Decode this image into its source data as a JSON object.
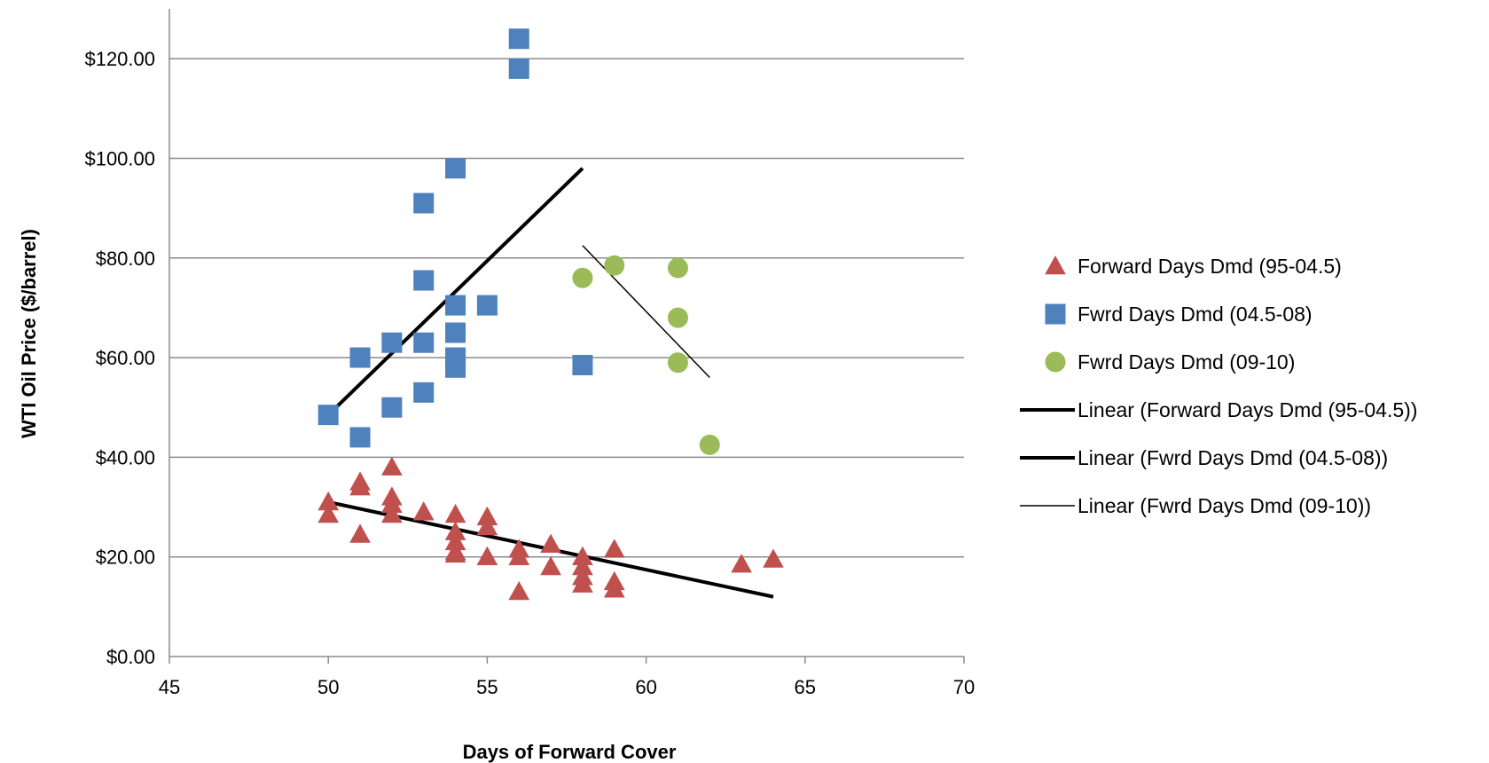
{
  "chart_data": {
    "type": "scatter",
    "xlabel": "Days of Forward Cover",
    "ylabel": "WTI Oil Price ($/barrel)",
    "xlim": [
      45,
      70
    ],
    "ylim": [
      0,
      130
    ],
    "x_ticks": [
      45,
      50,
      55,
      60,
      65,
      70
    ],
    "y_ticks": [
      0,
      20,
      40,
      60,
      80,
      100,
      120
    ],
    "y_tick_labels": [
      "$0.00",
      "$20.00",
      "$40.00",
      "$60.00",
      "$80.00",
      "$100.00",
      "$120.00"
    ],
    "grid": "horizontal",
    "legend_position": "right",
    "series": [
      {
        "name": "Forward Days Dmd (95-04.5)",
        "marker": "triangle",
        "color": "#c0504d",
        "points": [
          [
            50,
            31
          ],
          [
            50,
            28.5
          ],
          [
            51,
            35
          ],
          [
            51,
            34
          ],
          [
            51,
            24.5
          ],
          [
            52,
            38
          ],
          [
            52,
            32
          ],
          [
            52,
            30.5
          ],
          [
            52,
            28.5
          ],
          [
            53,
            29
          ],
          [
            54,
            28.5
          ],
          [
            54,
            25
          ],
          [
            54,
            23
          ],
          [
            54,
            21
          ],
          [
            54,
            20.5
          ],
          [
            55,
            28
          ],
          [
            55,
            26
          ],
          [
            55,
            20
          ],
          [
            56,
            21.5
          ],
          [
            56,
            20
          ],
          [
            56,
            13
          ],
          [
            57,
            22.5
          ],
          [
            57,
            18
          ],
          [
            58,
            20
          ],
          [
            58,
            18
          ],
          [
            58,
            16
          ],
          [
            58,
            14.5
          ],
          [
            59,
            21.5
          ],
          [
            59,
            15
          ],
          [
            59,
            13.5
          ],
          [
            63,
            18.5
          ],
          [
            64,
            19.5
          ]
        ]
      },
      {
        "name": "Fwrd Days Dmd (04.5-08)",
        "marker": "square",
        "color": "#4f81bd",
        "points": [
          [
            50,
            48.5
          ],
          [
            51,
            60
          ],
          [
            51,
            44
          ],
          [
            52,
            63
          ],
          [
            52,
            50
          ],
          [
            53,
            91
          ],
          [
            53,
            75.5
          ],
          [
            53,
            63
          ],
          [
            53,
            53
          ],
          [
            54,
            98
          ],
          [
            54,
            70.5
          ],
          [
            54,
            65
          ],
          [
            54,
            60
          ],
          [
            54,
            58
          ],
          [
            55,
            70.5
          ],
          [
            56,
            124
          ],
          [
            56,
            118
          ],
          [
            58,
            58.5
          ]
        ]
      },
      {
        "name": "Fwrd Days Dmd (09-10)",
        "marker": "circle",
        "color": "#9bbb59",
        "points": [
          [
            58,
            76
          ],
          [
            59,
            78.5
          ],
          [
            61,
            78
          ],
          [
            61,
            68
          ],
          [
            61,
            59
          ],
          [
            62,
            42.5
          ]
        ]
      }
    ],
    "trendlines": [
      {
        "name": "Linear (Forward Days Dmd (95-04.5))",
        "from": [
          50,
          31
        ],
        "to": [
          64,
          12
        ],
        "color": "#000000",
        "width": "thick"
      },
      {
        "name": "Linear (Fwrd Days Dmd (04.5-08))",
        "from": [
          50,
          48.5
        ],
        "to": [
          58,
          98
        ],
        "color": "#000000",
        "width": "thick"
      },
      {
        "name": "Linear (Fwrd Days Dmd (09-10))",
        "from": [
          58,
          82.5
        ],
        "to": [
          62,
          56
        ],
        "color": "#000000",
        "width": "thin"
      }
    ]
  }
}
